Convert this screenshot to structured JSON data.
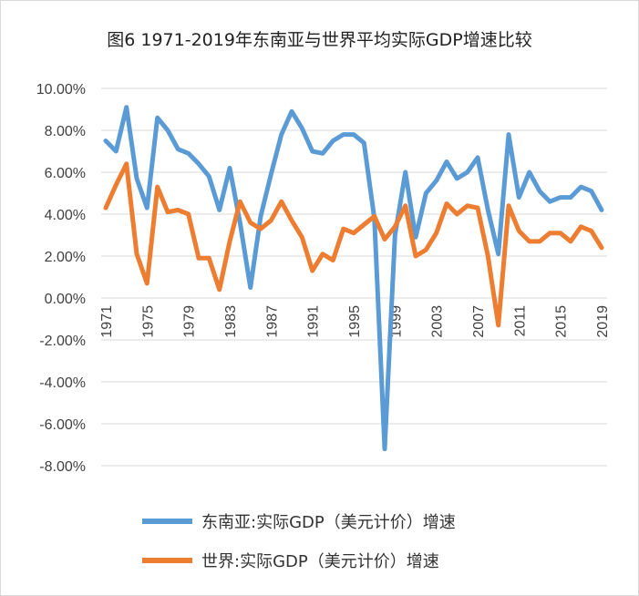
{
  "chart_data": {
    "type": "line",
    "title": "图6 1971-2019年东南亚与世界平均实际GDP增速比较",
    "x": [
      1971,
      1972,
      1973,
      1974,
      1975,
      1976,
      1977,
      1978,
      1979,
      1980,
      1981,
      1982,
      1983,
      1984,
      1985,
      1986,
      1987,
      1988,
      1989,
      1990,
      1991,
      1992,
      1993,
      1994,
      1995,
      1996,
      1997,
      1998,
      1999,
      2000,
      2001,
      2002,
      2003,
      2004,
      2005,
      2006,
      2007,
      2008,
      2009,
      2010,
      2011,
      2012,
      2013,
      2014,
      2015,
      2016,
      2017,
      2018,
      2019
    ],
    "x_tick_labels": [
      "1971",
      "1975",
      "1979",
      "1983",
      "1987",
      "1991",
      "1995",
      "1999",
      "2003",
      "2007",
      "2011",
      "2015",
      "2019"
    ],
    "y_tick_labels": [
      "10.00%",
      "8.00%",
      "6.00%",
      "4.00%",
      "2.00%",
      "0.00%",
      "-2.00%",
      "-4.00%",
      "-6.00%",
      "-8.00%"
    ],
    "ylim": [
      -8,
      10
    ],
    "y_unit": "%",
    "grid": true,
    "legend_placement": "bottom",
    "series": [
      {
        "name": "东南亚:实际GDP（美元计价）增速",
        "color": "#5b9bd5",
        "values": [
          7.5,
          7.0,
          9.1,
          5.7,
          4.3,
          8.6,
          8.0,
          7.1,
          6.9,
          6.4,
          5.8,
          4.2,
          6.2,
          3.6,
          0.5,
          3.9,
          5.9,
          7.8,
          8.9,
          8.1,
          7.0,
          6.9,
          7.5,
          7.8,
          7.8,
          7.4,
          3.8,
          -7.2,
          3.0,
          6.0,
          2.9,
          5.0,
          5.6,
          6.5,
          5.7,
          6.0,
          6.7,
          4.2,
          2.1,
          7.8,
          4.8,
          6.0,
          5.1,
          4.6,
          4.8,
          4.8,
          5.3,
          5.1,
          4.2
        ]
      },
      {
        "name": "世界:实际GDP（美元计价）增速",
        "color": "#ed7d31",
        "values": [
          4.3,
          5.4,
          6.4,
          2.1,
          0.7,
          5.3,
          4.1,
          4.2,
          4.0,
          1.9,
          1.9,
          0.4,
          2.7,
          4.6,
          3.6,
          3.3,
          3.7,
          4.6,
          3.7,
          2.9,
          1.3,
          2.1,
          1.8,
          3.3,
          3.1,
          3.5,
          3.9,
          2.8,
          3.4,
          4.4,
          2.0,
          2.3,
          3.1,
          4.5,
          4.0,
          4.4,
          4.3,
          2.0,
          -1.3,
          4.4,
          3.2,
          2.7,
          2.7,
          3.1,
          3.1,
          2.7,
          3.4,
          3.2,
          2.4
        ]
      }
    ]
  }
}
